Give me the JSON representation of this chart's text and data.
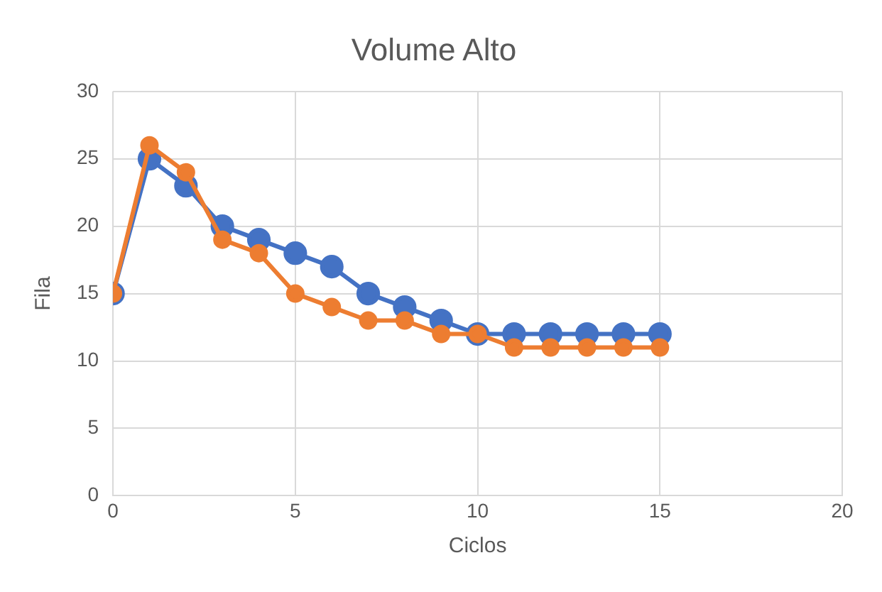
{
  "chart_data": {
    "type": "line",
    "title": "Volume Alto",
    "xlabel": "Ciclos",
    "ylabel": "Fila",
    "x": [
      0,
      1,
      2,
      3,
      4,
      5,
      6,
      7,
      8,
      9,
      10,
      11,
      12,
      13,
      14,
      15
    ],
    "series": [
      {
        "color": "#4472c4",
        "values": [
          15,
          25,
          23,
          20,
          19,
          18,
          17,
          15,
          14,
          13,
          12,
          12,
          12,
          12,
          12,
          12
        ]
      },
      {
        "color": "#ed7d31",
        "values": [
          15,
          26,
          24,
          19,
          18,
          15,
          14,
          13,
          13,
          12,
          12,
          11,
          11,
          11,
          11,
          11
        ]
      }
    ],
    "xlim": [
      0,
      20
    ],
    "xticks": [
      0,
      5,
      10,
      15,
      20
    ],
    "ylim": [
      0,
      30
    ],
    "yticks": [
      0,
      5,
      10,
      15,
      20,
      25,
      30
    ],
    "grid": true,
    "marker": "circle",
    "line_style": "solid"
  }
}
